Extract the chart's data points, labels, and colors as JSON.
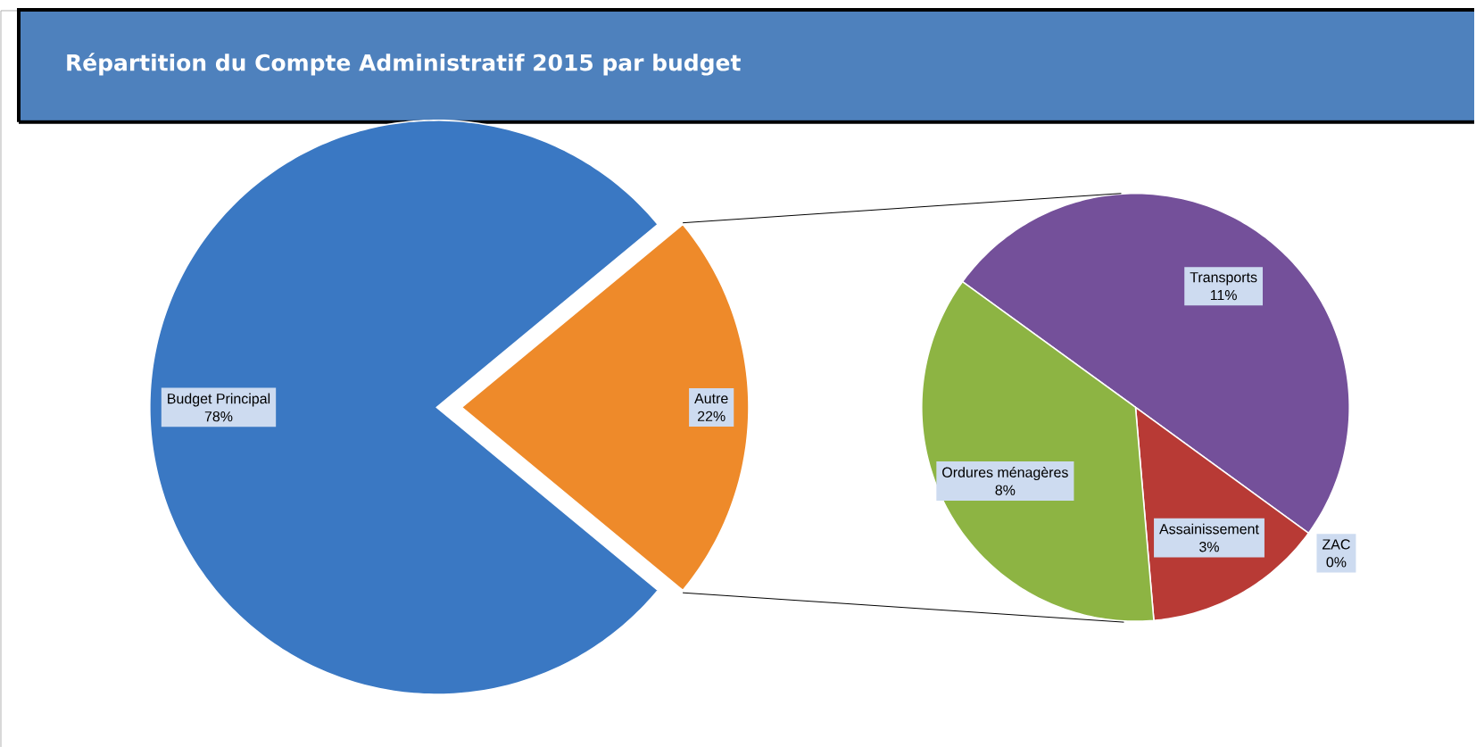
{
  "chart_data": [
    {
      "type": "pie",
      "title": "Répartition du Compte Administratif 2015 par budget",
      "categories": [
        "Budget Principal",
        "Autre"
      ],
      "values": [
        78,
        22
      ],
      "colors": [
        "#3a78c3",
        "#ee8a2a"
      ],
      "value_labels": [
        "78%",
        "22%"
      ]
    },
    {
      "type": "pie",
      "categories": [
        "Transports",
        "ZAC",
        "Assainissement",
        "Ordures ménagères"
      ],
      "values": [
        11,
        0,
        3,
        8
      ],
      "colors": [
        "#74509a",
        "#5b7fbf",
        "#b83a35",
        "#8db443"
      ],
      "value_labels": [
        "11%",
        "0%",
        "3%",
        "8%"
      ]
    }
  ]
}
